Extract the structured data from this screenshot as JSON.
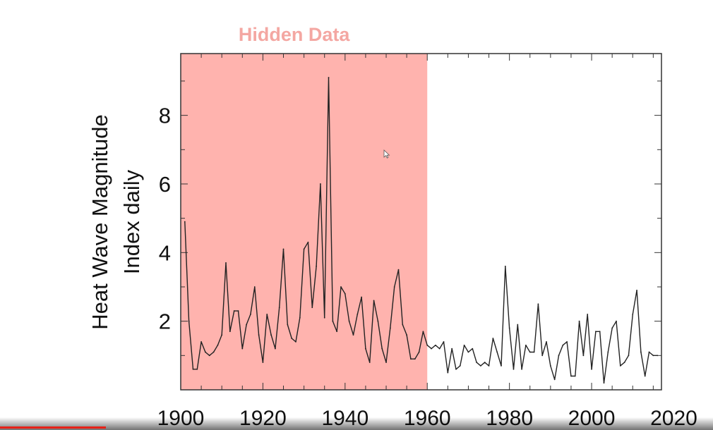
{
  "chart_data": {
    "type": "line",
    "title": "",
    "xlabel": "",
    "ylabel_lines": [
      "Heat Wave Magnitude",
      "Index daily"
    ],
    "xlim": [
      1900,
      2017
    ],
    "ylim": [
      0,
      9.8
    ],
    "xticks": [
      1900,
      1920,
      1940,
      1960,
      1980,
      2000,
      2020
    ],
    "xtick_labels": [
      "1900",
      "1920",
      "1940",
      "1960",
      "1980",
      "2000",
      "2020"
    ],
    "yticks": [
      2,
      4,
      6,
      8
    ],
    "ytick_labels": [
      "2",
      "4",
      "6",
      "8"
    ],
    "grid": false,
    "colors": {
      "line": "#222222",
      "hidden_region": "#ffb3ae",
      "hidden_label": "#f4a7a2",
      "axis": "#333333"
    },
    "annotations": [
      {
        "text": "Hidden Data",
        "x_start": 1900,
        "x_end": 1960,
        "kind": "shaded-region"
      }
    ],
    "series": [
      {
        "x": [
          1901,
          1902,
          1903,
          1904,
          1905,
          1906,
          1907,
          1908,
          1909,
          1910,
          1911,
          1912,
          1913,
          1914,
          1915,
          1916,
          1917,
          1918,
          1919,
          1920,
          1921,
          1922,
          1923,
          1924,
          1925,
          1926,
          1927,
          1928,
          1929,
          1930,
          1931,
          1932,
          1933,
          1934,
          1935,
          1936,
          1937,
          1938,
          1939,
          1940,
          1941,
          1942,
          1943,
          1944,
          1945,
          1946,
          1947,
          1948,
          1949,
          1950,
          1951,
          1952,
          1953,
          1954,
          1955,
          1956,
          1957,
          1958,
          1959,
          1960,
          1961,
          1962,
          1963,
          1964,
          1965,
          1966,
          1967,
          1968,
          1969,
          1970,
          1971,
          1972,
          1973,
          1974,
          1975,
          1976,
          1977,
          1978,
          1979,
          1980,
          1981,
          1982,
          1983,
          1984,
          1985,
          1986,
          1987,
          1988,
          1989,
          1990,
          1991,
          1992,
          1993,
          1994,
          1995,
          1996,
          1997,
          1998,
          1999,
          2000,
          2001,
          2002,
          2003,
          2004,
          2005,
          2006,
          2007,
          2008,
          2009,
          2010,
          2011,
          2012,
          2013,
          2014,
          2015,
          2016
        ],
        "values": [
          4.9,
          2.0,
          0.6,
          0.6,
          1.4,
          1.1,
          1.0,
          1.1,
          1.3,
          1.6,
          3.7,
          1.7,
          2.3,
          2.3,
          1.2,
          1.9,
          2.2,
          3.0,
          1.6,
          0.8,
          2.2,
          1.6,
          1.2,
          2.4,
          4.1,
          1.9,
          1.5,
          1.4,
          2.1,
          4.1,
          4.3,
          2.4,
          3.6,
          6.0,
          2.1,
          9.1,
          2.0,
          1.7,
          3.0,
          2.8,
          2.0,
          1.6,
          2.2,
          2.7,
          1.2,
          0.8,
          2.6,
          2.0,
          1.2,
          0.8,
          1.8,
          3.0,
          3.5,
          1.9,
          1.6,
          0.9,
          0.9,
          1.1,
          1.7,
          1.3,
          1.2,
          1.3,
          1.2,
          1.4,
          0.5,
          1.2,
          0.6,
          0.7,
          1.3,
          1.1,
          1.2,
          0.8,
          0.7,
          0.8,
          0.7,
          1.5,
          1.1,
          0.7,
          3.6,
          1.8,
          0.6,
          1.9,
          0.6,
          1.3,
          1.1,
          1.1,
          2.5,
          1.0,
          1.4,
          0.7,
          0.3,
          1.0,
          1.3,
          1.4,
          0.4,
          0.4,
          2.0,
          1.0,
          2.2,
          0.6,
          1.7,
          1.7,
          0.2,
          1.1,
          1.8,
          2.0,
          0.7,
          0.8,
          1.0,
          2.2,
          2.9,
          1.1,
          0.4,
          1.1,
          1.0,
          1.0
        ]
      }
    ]
  }
}
